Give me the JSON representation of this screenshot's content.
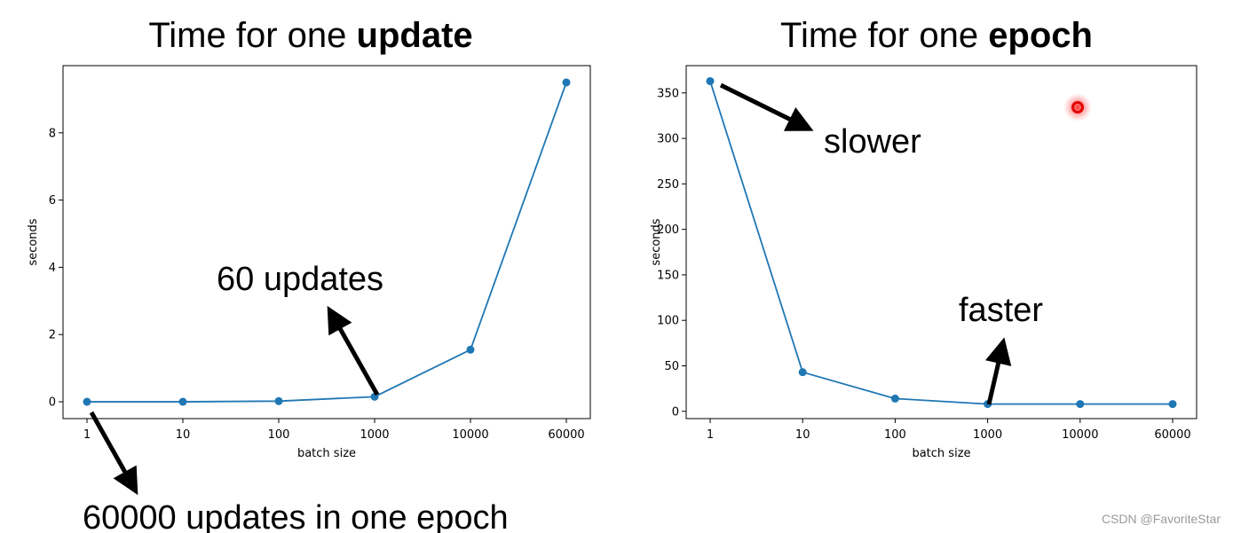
{
  "titles": {
    "left": {
      "prefix": "Time for one ",
      "bold": "update"
    },
    "right": {
      "prefix": "Time for one ",
      "bold": "epoch"
    }
  },
  "chart_data": [
    {
      "type": "line",
      "title": "Time for one update",
      "xlabel": "batch size",
      "ylabel": "seconds",
      "categories": [
        "1",
        "10",
        "100",
        "1000",
        "10000",
        "60000"
      ],
      "values": [
        0.0,
        0.0,
        0.02,
        0.15,
        1.55,
        9.5
      ],
      "ylim": [
        -0.5,
        10
      ],
      "yticks": [
        0,
        2,
        4,
        6,
        8
      ],
      "color": "#1f77b4",
      "annotations": [
        {
          "text": "60 updates"
        },
        {
          "text": "60000 updates in one epoch"
        }
      ]
    },
    {
      "type": "line",
      "title": "Time for one epoch",
      "xlabel": "batch size",
      "ylabel": "seconds",
      "categories": [
        "1",
        "10",
        "100",
        "1000",
        "10000",
        "60000"
      ],
      "values": [
        363,
        43,
        14,
        8,
        8,
        8
      ],
      "ylim": [
        -8,
        380
      ],
      "yticks": [
        0,
        50,
        100,
        150,
        200,
        250,
        300,
        350
      ],
      "color": "#1f77b4",
      "annotations": [
        {
          "text": "slower"
        },
        {
          "text": "faster"
        }
      ]
    }
  ],
  "watermark": "CSDN @FavoriteStar"
}
